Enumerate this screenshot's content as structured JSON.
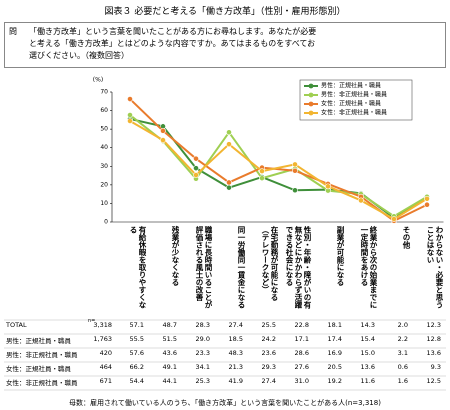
{
  "title": "図表３ 必要だと考える「働き方改革」（性別・雇用形態別）",
  "question": {
    "label": "問",
    "text": "「働き方改革」という言葉を聞いたことがある方にお尋ねします。あなたが必要と考える「働き方改革」とはどのような内容ですか。あてはまるものをすべてお選びください。（複数回答）"
  },
  "chart_data": {
    "type": "line",
    "y_label": "(%)",
    "ylim": [
      0,
      70
    ],
    "yticks": [
      0,
      10,
      20,
      30,
      40,
      50,
      60,
      70
    ],
    "legend": "upper right",
    "categories": [
      "有給休暇を取りやすくなる",
      "残業が少なくなる",
      "職場に長時間いることが評価される風土の改善",
      "同一労働同一賃金になる",
      "在宅勤務が可能になる（テレワークなど）",
      "性別・年齢・障がいの有無などにかかわらず活躍できる社会になる",
      "副業が可能になる",
      "終業から次の始業までに一定時間をあける",
      "その他",
      "わからない・必要と思うことはない"
    ],
    "n_header": "n=",
    "total": {
      "name": "TOTAL",
      "n": "3,318",
      "values": [
        57.1,
        48.7,
        28.3,
        27.4,
        25.5,
        22.8,
        18.1,
        14.3,
        2.0,
        12.3
      ],
      "value_labels": [
        "57.1",
        "48.7",
        "28.3",
        "27.4",
        "25.5",
        "22.8",
        "18.1",
        "14.3",
        "2.0",
        "12.3"
      ]
    },
    "series": [
      {
        "name": "男性：正規社員・職員",
        "color": "#3f8f3a",
        "n": "1,763",
        "values": [
          55.5,
          51.5,
          29.0,
          18.5,
          24.2,
          17.1,
          17.4,
          15.4,
          2.2,
          12.8
        ],
        "value_labels": [
          "55.5",
          "51.5",
          "29.0",
          "18.5",
          "24.2",
          "17.1",
          "17.4",
          "15.4",
          "2.2",
          "12.8"
        ]
      },
      {
        "name": "男性：非正規社員・職員",
        "color": "#9fcf52",
        "n": "420",
        "values": [
          57.6,
          43.6,
          23.3,
          48.3,
          23.6,
          28.6,
          16.9,
          15.0,
          3.1,
          13.6
        ],
        "value_labels": [
          "57.6",
          "43.6",
          "23.3",
          "48.3",
          "23.6",
          "28.6",
          "16.9",
          "15.0",
          "3.1",
          "13.6"
        ]
      },
      {
        "name": "女性：正規社員・職員",
        "color": "#e97b2c",
        "n": "464",
        "values": [
          66.2,
          49.1,
          34.1,
          21.3,
          29.3,
          27.6,
          20.5,
          13.6,
          0.6,
          9.3
        ],
        "value_labels": [
          "66.2",
          "49.1",
          "34.1",
          "21.3",
          "29.3",
          "27.6",
          "20.5",
          "13.6",
          "0.6",
          "9.3"
        ]
      },
      {
        "name": "女性：非正規社員・職員",
        "color": "#f2b531",
        "n": "671",
        "values": [
          54.4,
          44.1,
          25.3,
          41.9,
          27.4,
          31.0,
          19.2,
          11.6,
          1.6,
          12.5
        ],
        "value_labels": [
          "54.4",
          "44.1",
          "25.3",
          "41.9",
          "27.4",
          "31.0",
          "19.2",
          "11.6",
          "1.6",
          "12.5"
        ]
      }
    ]
  },
  "footnote": "母数：雇用されて働いている人のうち、「働き方改革」という言葉を聞いたことがある人(n=3,318)"
}
